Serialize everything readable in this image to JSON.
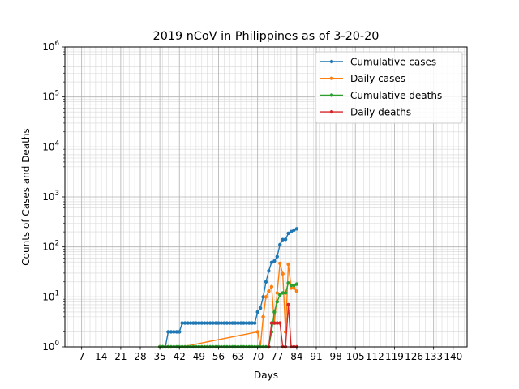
{
  "chart_data": {
    "type": "line",
    "title": "2019 nCoV in Philippines as of 3-20-20",
    "xlabel": "Days",
    "ylabel": "Counts of Cases and Deaths",
    "yscale": "log",
    "xlim": [
      1,
      145
    ],
    "ylim": [
      1,
      1000000
    ],
    "grid": true,
    "legend_position": "top-right",
    "x_ticks": [
      "7",
      "14",
      "21",
      "28",
      "35",
      "42",
      "49",
      "56",
      "63",
      "70",
      "77",
      "84",
      "91",
      "98",
      "105",
      "112",
      "119",
      "126",
      "133",
      "140"
    ],
    "y_ticks": [
      {
        "base": "10",
        "exp": "0",
        "value": 1
      },
      {
        "base": "10",
        "exp": "1",
        "value": 10
      },
      {
        "base": "10",
        "exp": "2",
        "value": 100
      },
      {
        "base": "10",
        "exp": "3",
        "value": 1000
      },
      {
        "base": "10",
        "exp": "4",
        "value": 10000
      },
      {
        "base": "10",
        "exp": "5",
        "value": 100000
      },
      {
        "base": "10",
        "exp": "6",
        "value": 1000000
      }
    ],
    "series": [
      {
        "name": "Cumulative cases",
        "color": "#1f77b4",
        "points": [
          [
            35,
            1
          ],
          [
            36,
            1
          ],
          [
            37,
            1
          ],
          [
            38,
            2
          ],
          [
            39,
            2
          ],
          [
            40,
            2
          ],
          [
            41,
            2
          ],
          [
            42,
            2
          ],
          [
            43,
            3
          ],
          [
            44,
            3
          ],
          [
            45,
            3
          ],
          [
            46,
            3
          ],
          [
            47,
            3
          ],
          [
            48,
            3
          ],
          [
            49,
            3
          ],
          [
            50,
            3
          ],
          [
            51,
            3
          ],
          [
            52,
            3
          ],
          [
            53,
            3
          ],
          [
            54,
            3
          ],
          [
            55,
            3
          ],
          [
            56,
            3
          ],
          [
            57,
            3
          ],
          [
            58,
            3
          ],
          [
            59,
            3
          ],
          [
            60,
            3
          ],
          [
            61,
            3
          ],
          [
            62,
            3
          ],
          [
            63,
            3
          ],
          [
            64,
            3
          ],
          [
            65,
            3
          ],
          [
            66,
            3
          ],
          [
            67,
            3
          ],
          [
            68,
            3
          ],
          [
            69,
            3
          ],
          [
            70,
            5
          ],
          [
            71,
            6
          ],
          [
            72,
            10
          ],
          [
            73,
            20
          ],
          [
            74,
            33
          ],
          [
            75,
            49
          ],
          [
            76,
            52
          ],
          [
            77,
            64
          ],
          [
            78,
            111
          ],
          [
            79,
            140
          ],
          [
            80,
            142
          ],
          [
            81,
            187
          ],
          [
            82,
            202
          ],
          [
            83,
            217
          ],
          [
            84,
            230
          ]
        ]
      },
      {
        "name": "Daily cases",
        "color": "#ff7f0e",
        "points": [
          [
            35,
            1
          ],
          [
            38,
            1
          ],
          [
            43,
            1
          ],
          [
            70,
            2
          ],
          [
            71,
            1
          ],
          [
            72,
            4
          ],
          [
            73,
            10
          ],
          [
            74,
            13
          ],
          [
            75,
            16
          ],
          [
            76,
            3
          ],
          [
            77,
            12
          ],
          [
            78,
            47
          ],
          [
            79,
            29
          ],
          [
            80,
            2
          ],
          [
            81,
            45
          ],
          [
            82,
            15
          ],
          [
            83,
            15
          ],
          [
            84,
            13
          ]
        ]
      },
      {
        "name": "Cumulative deaths",
        "color": "#2ca02c",
        "points": [
          [
            35,
            1
          ],
          [
            36,
            1
          ],
          [
            37,
            1
          ],
          [
            38,
            1
          ],
          [
            39,
            1
          ],
          [
            40,
            1
          ],
          [
            41,
            1
          ],
          [
            42,
            1
          ],
          [
            43,
            1
          ],
          [
            44,
            1
          ],
          [
            45,
            1
          ],
          [
            46,
            1
          ],
          [
            47,
            1
          ],
          [
            48,
            1
          ],
          [
            49,
            1
          ],
          [
            50,
            1
          ],
          [
            51,
            1
          ],
          [
            52,
            1
          ],
          [
            53,
            1
          ],
          [
            54,
            1
          ],
          [
            55,
            1
          ],
          [
            56,
            1
          ],
          [
            57,
            1
          ],
          [
            58,
            1
          ],
          [
            59,
            1
          ],
          [
            60,
            1
          ],
          [
            61,
            1
          ],
          [
            62,
            1
          ],
          [
            63,
            1
          ],
          [
            64,
            1
          ],
          [
            65,
            1
          ],
          [
            66,
            1
          ],
          [
            67,
            1
          ],
          [
            68,
            1
          ],
          [
            69,
            1
          ],
          [
            70,
            1
          ],
          [
            71,
            1
          ],
          [
            72,
            1
          ],
          [
            73,
            1
          ],
          [
            74,
            1
          ],
          [
            75,
            2
          ],
          [
            76,
            5
          ],
          [
            77,
            8
          ],
          [
            78,
            11
          ],
          [
            79,
            12
          ],
          [
            80,
            12
          ],
          [
            81,
            19
          ],
          [
            82,
            17
          ],
          [
            83,
            17
          ],
          [
            84,
            18
          ]
        ]
      },
      {
        "name": "Daily deaths",
        "color": "#d62728",
        "points": [
          [
            74,
            1
          ],
          [
            75,
            3
          ],
          [
            76,
            3
          ],
          [
            77,
            3
          ],
          [
            78,
            3
          ],
          [
            79,
            1
          ],
          [
            80,
            1
          ],
          [
            81,
            7
          ],
          [
            82,
            1
          ],
          [
            83,
            1
          ],
          [
            84,
            1
          ]
        ]
      }
    ]
  }
}
